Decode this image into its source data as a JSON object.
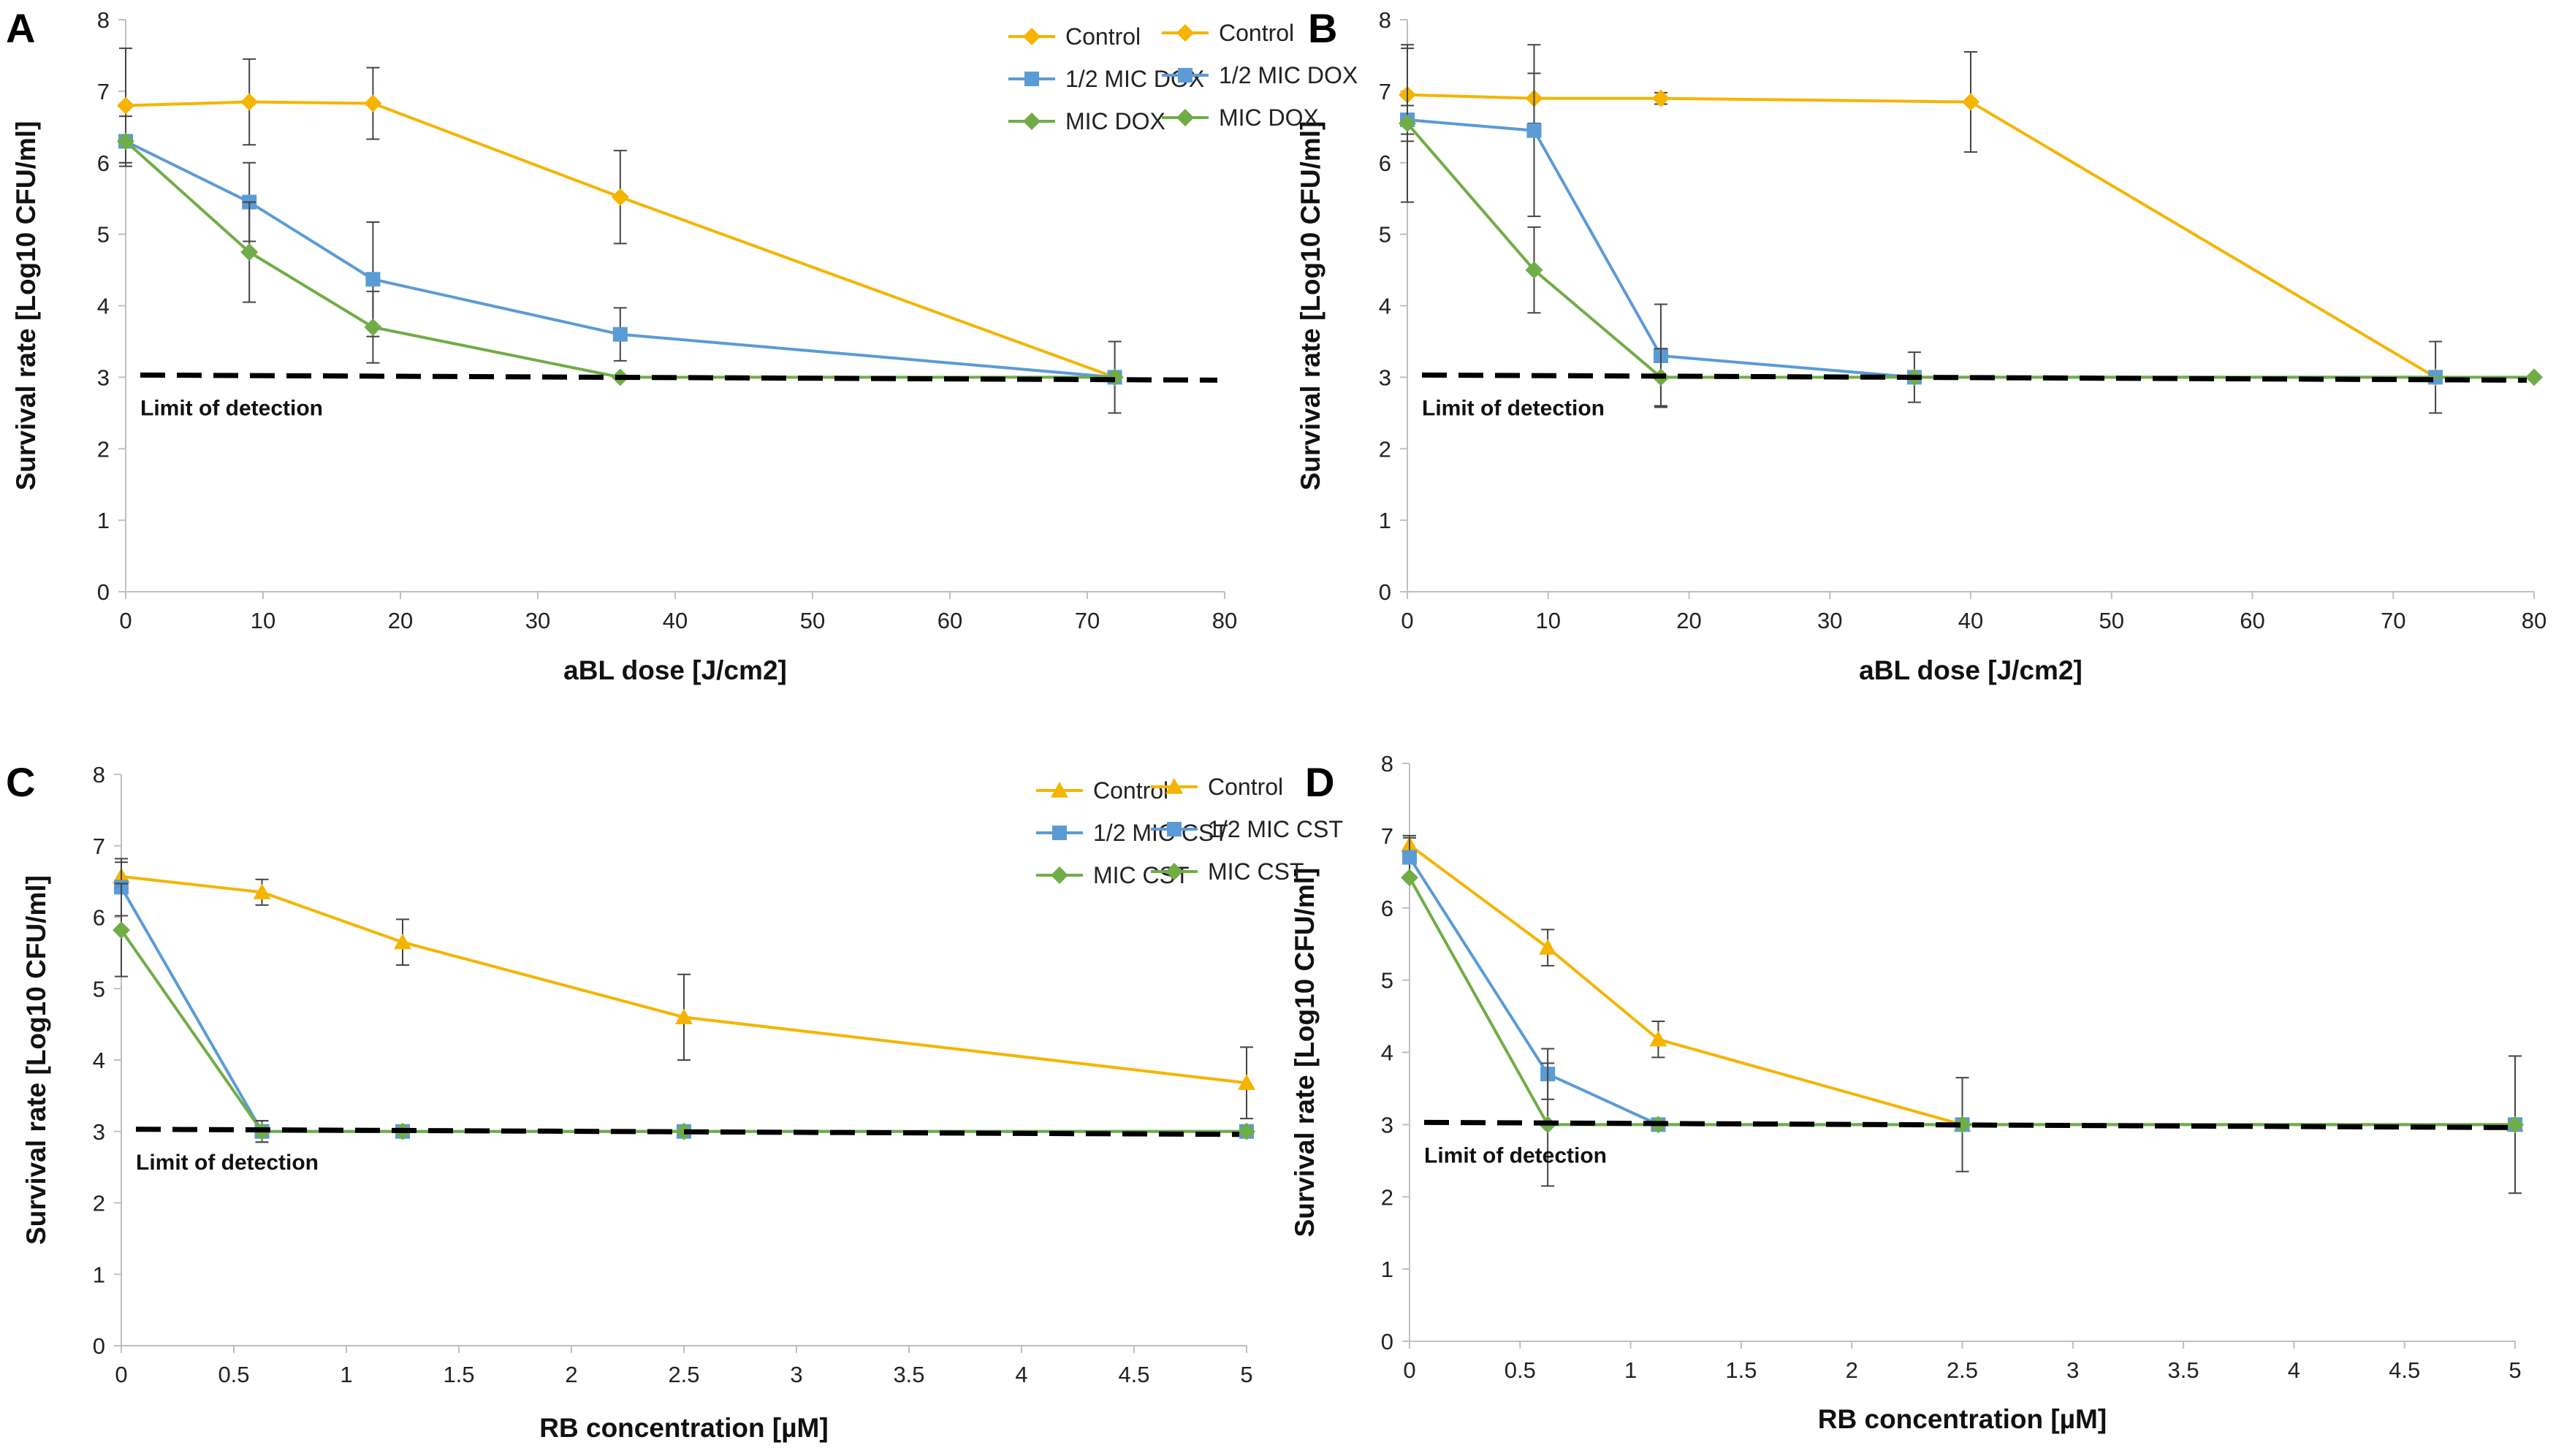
{
  "figure": {
    "colors": {
      "control": "#F5B400",
      "half_mic": "#5B9BD5",
      "mic": "#70AD47",
      "lod_line": "#000000",
      "axis": "#BFBFBF",
      "error_bar": "#444444"
    }
  },
  "chart_data": [
    {
      "panel": "A",
      "type": "line",
      "xlabel": "aBL dose [J/cm2]",
      "ylabel": "Survival rate [Log10 CFU/ml]",
      "xlim": [
        0,
        80
      ],
      "ylim": [
        0,
        8
      ],
      "xticks": [
        "0",
        "10",
        "20",
        "30",
        "40",
        "50",
        "60",
        "70",
        "80"
      ],
      "xtick_values": [
        0,
        10,
        20,
        30,
        40,
        50,
        60,
        70,
        80
      ],
      "yticks": [
        "0",
        "1",
        "2",
        "3",
        "4",
        "5",
        "6",
        "7",
        "8"
      ],
      "lod": {
        "value": 3,
        "label": "Limit of detection"
      },
      "series": [
        {
          "name": "Control",
          "marker": "diamond",
          "color_key": "control",
          "x": [
            0,
            9,
            18,
            36,
            72
          ],
          "y": [
            6.8,
            6.85,
            6.83,
            5.52,
            3.0
          ],
          "err": [
            0.8,
            0.6,
            0.5,
            0.65,
            0.5
          ]
        },
        {
          "name": "1/2 MIC DOX",
          "marker": "square",
          "color_key": "half_mic",
          "x": [
            0,
            9,
            18,
            36,
            72
          ],
          "y": [
            6.3,
            5.45,
            4.37,
            3.6,
            3.0
          ],
          "err": [
            0.35,
            0.55,
            0.8,
            0.37,
            0
          ]
        },
        {
          "name": "MIC DOX",
          "marker": "diamond",
          "color_key": "mic",
          "x": [
            0,
            9,
            18,
            36,
            72
          ],
          "y": [
            6.3,
            4.75,
            3.7,
            3.0,
            3.0
          ],
          "err": [
            0,
            0.7,
            0.5,
            0,
            0
          ]
        }
      ]
    },
    {
      "panel": "B",
      "type": "line",
      "xlabel": "aBL dose [J/cm2]",
      "ylabel": "Survival rate [Log10 CFU/ml]",
      "xlim": [
        0,
        80
      ],
      "ylim": [
        0,
        8
      ],
      "xticks": [
        "0",
        "10",
        "20",
        "30",
        "40",
        "50",
        "60",
        "70",
        "80"
      ],
      "xtick_values": [
        0,
        10,
        20,
        30,
        40,
        50,
        60,
        70,
        80
      ],
      "yticks": [
        "0",
        "1",
        "2",
        "3",
        "4",
        "5",
        "6",
        "7",
        "8"
      ],
      "lod": {
        "value": 3,
        "label": "Limit of detection"
      },
      "series": [
        {
          "name": "Control",
          "marker": "diamond",
          "color_key": "control",
          "x": [
            0,
            9,
            18,
            40,
            73
          ],
          "y": [
            6.95,
            6.9,
            6.9,
            6.85,
            3.0
          ],
          "err": [
            0.65,
            0.35,
            0.08,
            0.7,
            0.5
          ]
        },
        {
          "name": "1/2 MIC DOX",
          "marker": "square",
          "color_key": "half_mic",
          "x": [
            0,
            9,
            18,
            36,
            73
          ],
          "y": [
            6.6,
            6.45,
            3.3,
            3.0,
            3.0
          ],
          "err": [
            0.2,
            1.2,
            0.72,
            0.35,
            0
          ]
        },
        {
          "name": "MIC DOX",
          "marker": "diamond",
          "color_key": "mic",
          "x": [
            0,
            9,
            18,
            36,
            80
          ],
          "y": [
            6.55,
            4.5,
            3.0,
            3.0,
            3.0
          ],
          "err": [
            1.1,
            0.6,
            0.4,
            0,
            0
          ]
        }
      ]
    },
    {
      "panel": "C",
      "type": "line",
      "xlabel": "RB concentration [µM]",
      "ylabel": "Survival rate [Log10 CFU/ml]",
      "xlim": [
        0,
        5
      ],
      "ylim": [
        0,
        8
      ],
      "xticks": [
        "0",
        "0.5",
        "1",
        "1.5",
        "2",
        "2.5",
        "3",
        "3.5",
        "4",
        "4.5",
        "5"
      ],
      "xtick_values": [
        0,
        0.5,
        1,
        1.5,
        2,
        2.5,
        3,
        3.5,
        4,
        4.5,
        5
      ],
      "yticks": [
        "0",
        "1",
        "2",
        "3",
        "4",
        "5",
        "6",
        "7",
        "8"
      ],
      "lod": {
        "value": 3,
        "label": "Limit of detection"
      },
      "series": [
        {
          "name": "Control",
          "marker": "triangle",
          "color_key": "control",
          "x": [
            0,
            0.625,
            1.25,
            2.5,
            5
          ],
          "y": [
            6.57,
            6.35,
            5.65,
            4.6,
            3.68
          ],
          "err": [
            0.2,
            0.18,
            0.32,
            0.6,
            0.5
          ]
        },
        {
          "name": "1/2 MIC CST",
          "marker": "square",
          "color_key": "half_mic",
          "x": [
            0,
            0.625,
            1.25,
            2.5,
            5
          ],
          "y": [
            6.42,
            3.0,
            3.0,
            3.0,
            3.0
          ],
          "err": [
            0.4,
            0.15,
            0,
            0,
            0
          ]
        },
        {
          "name": "MIC CST",
          "marker": "diamond",
          "color_key": "mic",
          "x": [
            0,
            0.625,
            1.25,
            2.5,
            5
          ],
          "y": [
            5.82,
            3.0,
            3.0,
            3.0,
            3.0
          ],
          "err": [
            0.65,
            0.15,
            0,
            0,
            0
          ]
        }
      ]
    },
    {
      "panel": "D",
      "type": "line",
      "xlabel": "RB concentration [µM]",
      "ylabel": "Survival rate [Log10 CFU/ml]",
      "xlim": [
        0,
        5
      ],
      "ylim": [
        0,
        8
      ],
      "xticks": [
        "0",
        "0.5",
        "1",
        "1.5",
        "2",
        "2.5",
        "3",
        "3.5",
        "4",
        "4.5",
        "5"
      ],
      "xtick_values": [
        0,
        0.5,
        1,
        1.5,
        2,
        2.5,
        3,
        3.5,
        4,
        4.5,
        5
      ],
      "yticks": [
        "0",
        "1",
        "2",
        "3",
        "4",
        "5",
        "6",
        "7",
        "8"
      ],
      "lod": {
        "value": 3,
        "label": "Limit of detection"
      },
      "series": [
        {
          "name": "Control",
          "marker": "triangle",
          "color_key": "control",
          "x": [
            0,
            0.625,
            1.125,
            2.5,
            5
          ],
          "y": [
            6.87,
            5.45,
            4.18,
            3.0,
            3.0
          ],
          "err": [
            0.1,
            0.25,
            0.25,
            0.65,
            0.95
          ]
        },
        {
          "name": "1/2 MIC CST",
          "marker": "square",
          "color_key": "half_mic",
          "x": [
            0,
            0.625,
            1.125,
            2.5,
            5
          ],
          "y": [
            6.7,
            3.7,
            3.0,
            3.0,
            3.0
          ],
          "err": [
            0.3,
            0.35,
            0,
            0,
            0
          ]
        },
        {
          "name": "MIC CST",
          "marker": "diamond",
          "color_key": "mic",
          "x": [
            0,
            0.625,
            1.125,
            2.5,
            5
          ],
          "y": [
            6.42,
            3.0,
            3.0,
            3.0,
            3.0
          ],
          "err": [
            0,
            0.85,
            0,
            0,
            0
          ]
        }
      ]
    }
  ]
}
